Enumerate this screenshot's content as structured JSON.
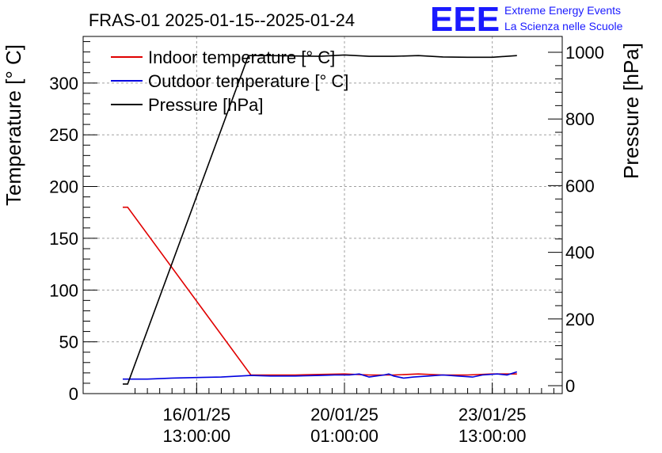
{
  "chart_data": {
    "type": "line",
    "title": "FRAS-01 2025-01-15--2025-01-24",
    "logo": {
      "text": "EEE",
      "line1": "Extreme Energy Events",
      "line2": "La Scienza nelle Scuole",
      "color": "#1a1aff"
    },
    "ylabel": "Temperature [° C]",
    "y2label": "Pressure [hPa]",
    "ylim": [
      0,
      345
    ],
    "y2lim": [
      0,
      1000
    ],
    "xlim": [
      0,
      9
    ],
    "yticks": [
      0,
      50,
      100,
      150,
      200,
      250,
      300
    ],
    "y2ticks": [
      0,
      200,
      400,
      600,
      800,
      1000
    ],
    "xticks": [
      {
        "pos": 1.5,
        "line1": "16/01/25",
        "line2": "13:00:00"
      },
      {
        "pos": 4.5,
        "line1": "20/01/25",
        "line2": "01:00:00"
      },
      {
        "pos": 7.5,
        "line1": "23/01/25",
        "line2": "13:00:00"
      }
    ],
    "grid": true,
    "legend_position": "top-left",
    "series": [
      {
        "name": "Indoor temperature [° C]",
        "color": "#e00000",
        "axis": "left",
        "x": [
          0.0,
          0.1,
          2.6,
          3.0,
          3.5,
          4.0,
          4.5,
          5.0,
          5.5,
          6.0,
          6.5,
          7.0,
          7.5,
          8.0
        ],
        "values": [
          180,
          180,
          18,
          18,
          18,
          18.5,
          19,
          18,
          18,
          19,
          18,
          18,
          19,
          19
        ]
      },
      {
        "name": "Outdoor temperature [° C]",
        "color": "#0000e0",
        "axis": "left",
        "x": [
          0.0,
          0.5,
          1.0,
          1.5,
          2.0,
          2.6,
          3.0,
          3.5,
          4.0,
          4.3,
          4.6,
          4.8,
          5.0,
          5.3,
          5.4,
          5.5,
          5.7,
          5.9,
          6.2,
          6.5,
          6.8,
          7.1,
          7.3,
          7.6,
          7.8,
          8.0
        ],
        "values": [
          14,
          14,
          15,
          15.5,
          16,
          17.5,
          17,
          17,
          17.5,
          18,
          18,
          19,
          16,
          18,
          19,
          17,
          15,
          16,
          17,
          18,
          17,
          16,
          18,
          19,
          18,
          21
        ]
      },
      {
        "name": "Pressure [hPa]",
        "color": "#000000",
        "axis": "right",
        "x": [
          0.0,
          0.1,
          2.55,
          3.0,
          4.0,
          4.5,
          5.0,
          5.5,
          6.0,
          6.5,
          7.0,
          7.5,
          8.0
        ],
        "values": [
          5,
          5,
          990,
          990,
          988,
          992,
          988,
          988,
          990,
          986,
          985,
          985,
          990
        ]
      }
    ]
  }
}
